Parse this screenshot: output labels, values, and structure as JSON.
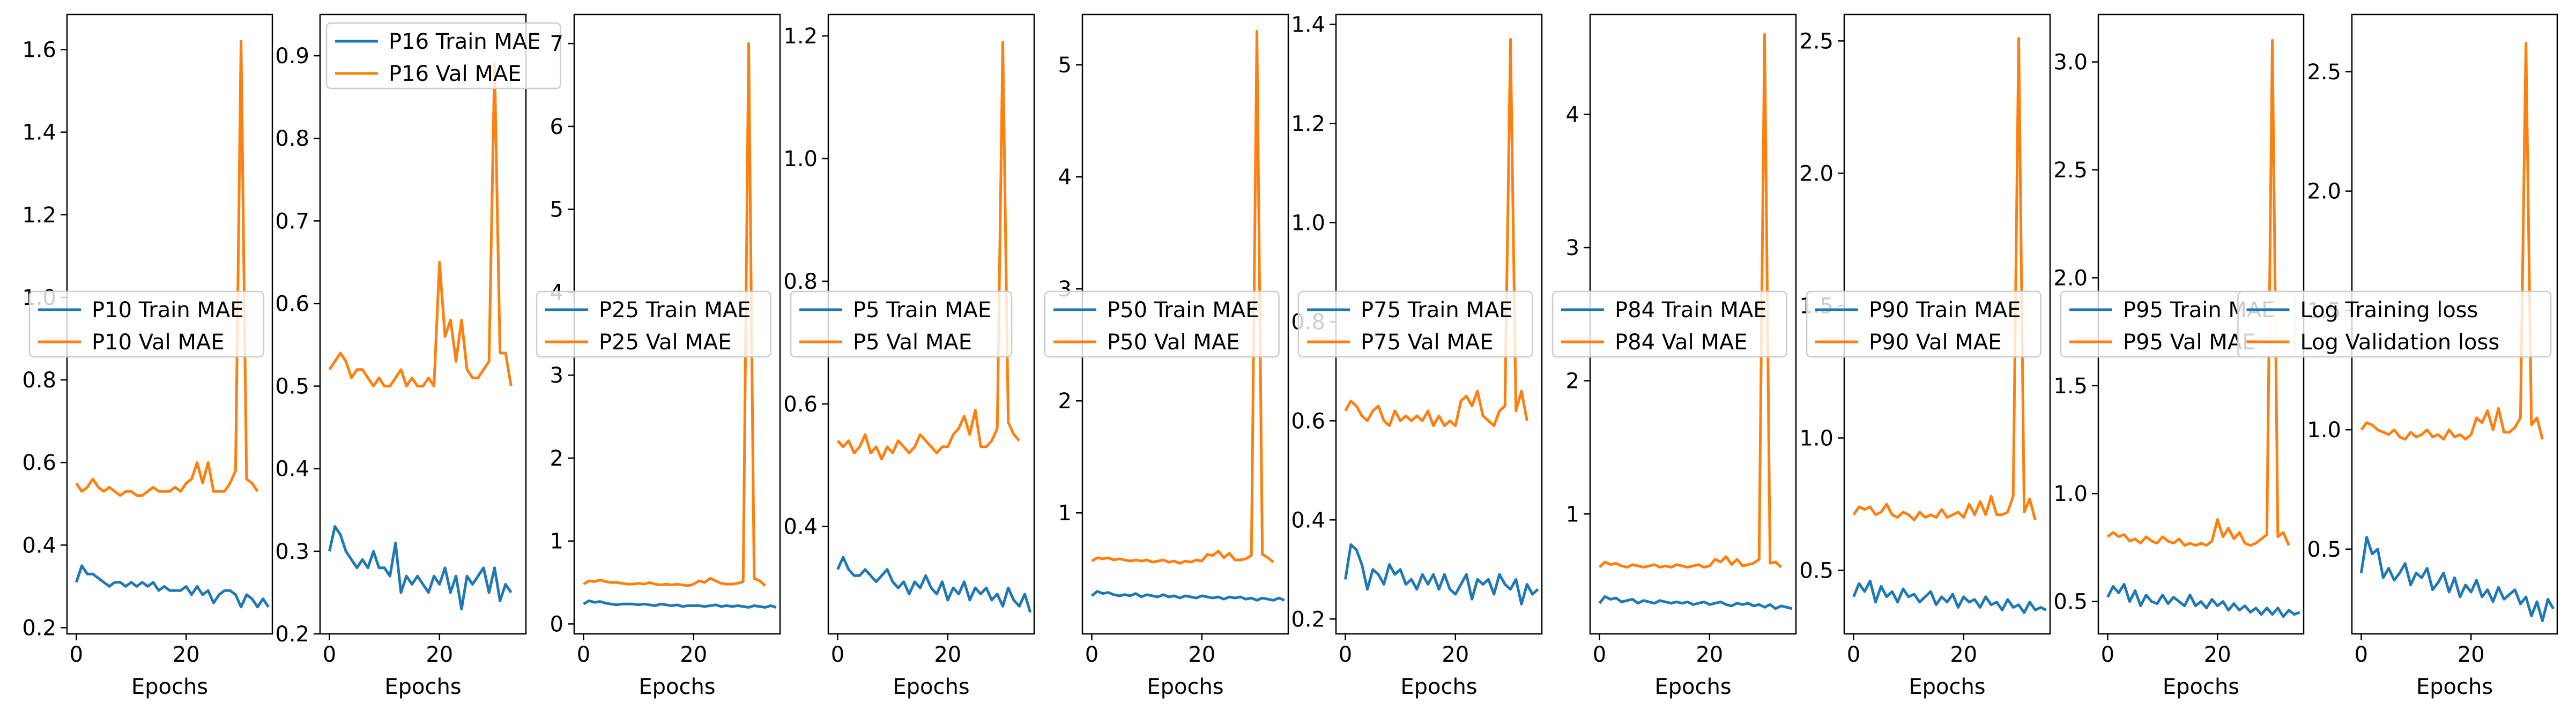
{
  "colors": {
    "train": "#1f77b4",
    "val": "#ff7f0e",
    "axes": "#000000",
    "legend_border": "#cccccc"
  },
  "chart_data": [
    {
      "type": "line",
      "xlabel": "Epochs",
      "xlim": [
        -1.7,
        35.7
      ],
      "xticks": [
        0,
        20
      ],
      "ylim": [
        0.185,
        1.685
      ],
      "yticks": [
        0.2,
        0.4,
        0.6,
        0.8,
        1.0,
        1.2,
        1.4,
        1.6
      ],
      "ytick_labels": [
        "0.2",
        "0.4",
        "0.6",
        "0.8",
        "1.0",
        "1.2",
        "1.4",
        "1.6"
      ],
      "legend": "center-left",
      "series": [
        {
          "name": "P10 Train MAE",
          "values": [
            0.31,
            0.35,
            0.33,
            0.33,
            0.32,
            0.31,
            0.3,
            0.31,
            0.31,
            0.3,
            0.31,
            0.3,
            0.31,
            0.3,
            0.31,
            0.29,
            0.3,
            0.29,
            0.29,
            0.29,
            0.3,
            0.28,
            0.3,
            0.28,
            0.29,
            0.26,
            0.28,
            0.29,
            0.29,
            0.28,
            0.25,
            0.28,
            0.27,
            0.25,
            0.27,
            0.25
          ]
        },
        {
          "name": "P10 Val MAE",
          "values": [
            0.55,
            0.53,
            0.54,
            0.56,
            0.54,
            0.53,
            0.54,
            0.53,
            0.52,
            0.53,
            0.53,
            0.52,
            0.52,
            0.53,
            0.54,
            0.53,
            0.53,
            0.53,
            0.54,
            0.53,
            0.55,
            0.56,
            0.6,
            0.55,
            0.6,
            0.53,
            0.53,
            0.53,
            0.55,
            0.58,
            1.62,
            0.56,
            0.55,
            0.53
          ]
        }
      ]
    },
    {
      "type": "line",
      "xlabel": "Epochs",
      "xlim": [
        -1.7,
        35.7
      ],
      "xticks": [
        0,
        20
      ],
      "ylim": [
        0.2,
        0.95
      ],
      "yticks": [
        0.2,
        0.3,
        0.4,
        0.5,
        0.6,
        0.7,
        0.8,
        0.9
      ],
      "ytick_labels": [
        "0.2",
        "0.3",
        "0.4",
        "0.5",
        "0.6",
        "0.7",
        "0.8",
        "0.9"
      ],
      "legend": "upper-left",
      "series": [
        {
          "name": "P16 Train MAE",
          "values": [
            0.3,
            0.33,
            0.32,
            0.3,
            0.29,
            0.28,
            0.29,
            0.28,
            0.3,
            0.28,
            0.28,
            0.27,
            0.31,
            0.25,
            0.27,
            0.26,
            0.27,
            0.26,
            0.25,
            0.27,
            0.26,
            0.28,
            0.25,
            0.27,
            0.23,
            0.27,
            0.26,
            0.27,
            0.28,
            0.25,
            0.28,
            0.24,
            0.26,
            0.25
          ]
        },
        {
          "name": "P16 Val MAE",
          "values": [
            0.52,
            0.53,
            0.54,
            0.53,
            0.51,
            0.52,
            0.52,
            0.51,
            0.5,
            0.51,
            0.5,
            0.5,
            0.51,
            0.52,
            0.5,
            0.51,
            0.5,
            0.5,
            0.51,
            0.5,
            0.65,
            0.56,
            0.58,
            0.53,
            0.58,
            0.52,
            0.51,
            0.51,
            0.52,
            0.53,
            0.89,
            0.54,
            0.54,
            0.5
          ]
        }
      ]
    },
    {
      "type": "line",
      "xlabel": "Epochs",
      "xlim": [
        -1.7,
        35.7
      ],
      "xticks": [
        0,
        20
      ],
      "ylim": [
        -0.12,
        7.35
      ],
      "yticks": [
        0,
        1,
        2,
        3,
        4,
        5,
        6,
        7
      ],
      "ytick_labels": [
        "0",
        "1",
        "2",
        "3",
        "4",
        "5",
        "6",
        "7"
      ],
      "legend": "center-left",
      "series": [
        {
          "name": "P25 Train MAE",
          "values": [
            0.24,
            0.28,
            0.26,
            0.27,
            0.25,
            0.24,
            0.23,
            0.24,
            0.24,
            0.24,
            0.23,
            0.24,
            0.23,
            0.22,
            0.24,
            0.23,
            0.22,
            0.23,
            0.21,
            0.22,
            0.22,
            0.22,
            0.21,
            0.22,
            0.23,
            0.21,
            0.22,
            0.21,
            0.22,
            0.21,
            0.2,
            0.22,
            0.21,
            0.2,
            0.22,
            0.2
          ]
        },
        {
          "name": "P25 Val MAE",
          "values": [
            0.48,
            0.52,
            0.51,
            0.53,
            0.51,
            0.5,
            0.5,
            0.49,
            0.48,
            0.48,
            0.49,
            0.48,
            0.5,
            0.48,
            0.47,
            0.48,
            0.47,
            0.48,
            0.47,
            0.46,
            0.48,
            0.52,
            0.5,
            0.55,
            0.52,
            0.49,
            0.48,
            0.48,
            0.49,
            0.51,
            7.0,
            0.55,
            0.52,
            0.46
          ]
        }
      ]
    },
    {
      "type": "line",
      "xlabel": "Epochs",
      "xlim": [
        -1.7,
        35.7
      ],
      "xticks": [
        0,
        20
      ],
      "ylim": [
        0.225,
        1.235
      ],
      "yticks": [
        0.4,
        0.6,
        0.8,
        1.0,
        1.2
      ],
      "ytick_labels": [
        "0.4",
        "0.6",
        "0.8",
        "1.0",
        "1.2"
      ],
      "legend": "center-left",
      "series": [
        {
          "name": "P5 Train MAE",
          "values": [
            0.33,
            0.35,
            0.33,
            0.32,
            0.32,
            0.33,
            0.32,
            0.31,
            0.32,
            0.33,
            0.31,
            0.3,
            0.31,
            0.29,
            0.31,
            0.3,
            0.32,
            0.3,
            0.29,
            0.31,
            0.28,
            0.3,
            0.29,
            0.31,
            0.28,
            0.3,
            0.29,
            0.3,
            0.28,
            0.29,
            0.27,
            0.3,
            0.28,
            0.27,
            0.29,
            0.26
          ]
        },
        {
          "name": "P5 Val MAE",
          "values": [
            0.54,
            0.53,
            0.54,
            0.52,
            0.53,
            0.55,
            0.52,
            0.53,
            0.51,
            0.53,
            0.52,
            0.54,
            0.53,
            0.52,
            0.53,
            0.55,
            0.54,
            0.53,
            0.52,
            0.53,
            0.53,
            0.55,
            0.56,
            0.58,
            0.55,
            0.59,
            0.53,
            0.53,
            0.54,
            0.56,
            1.19,
            0.57,
            0.55,
            0.54
          ]
        }
      ]
    },
    {
      "type": "line",
      "xlabel": "Epochs",
      "xlim": [
        -1.7,
        35.7
      ],
      "xticks": [
        0,
        20
      ],
      "ylim": [
        -0.08,
        5.45
      ],
      "yticks": [
        1,
        2,
        3,
        4,
        5
      ],
      "ytick_labels": [
        "1",
        "2",
        "3",
        "4",
        "5"
      ],
      "legend": "center-left",
      "series": [
        {
          "name": "P50 Train MAE",
          "values": [
            0.26,
            0.3,
            0.28,
            0.29,
            0.27,
            0.26,
            0.27,
            0.26,
            0.28,
            0.25,
            0.27,
            0.26,
            0.25,
            0.27,
            0.25,
            0.26,
            0.24,
            0.26,
            0.25,
            0.24,
            0.26,
            0.25,
            0.24,
            0.25,
            0.23,
            0.25,
            0.24,
            0.25,
            0.23,
            0.24,
            0.22,
            0.24,
            0.23,
            0.22,
            0.24,
            0.22
          ]
        },
        {
          "name": "P50 Val MAE",
          "values": [
            0.57,
            0.6,
            0.59,
            0.6,
            0.58,
            0.59,
            0.58,
            0.57,
            0.58,
            0.57,
            0.58,
            0.56,
            0.57,
            0.58,
            0.56,
            0.57,
            0.55,
            0.57,
            0.56,
            0.58,
            0.57,
            0.63,
            0.62,
            0.66,
            0.6,
            0.64,
            0.58,
            0.58,
            0.59,
            0.62,
            5.3,
            0.63,
            0.6,
            0.56
          ]
        }
      ]
    },
    {
      "type": "line",
      "xlabel": "Epochs",
      "xlim": [
        -1.7,
        35.7
      ],
      "xticks": [
        0,
        20
      ],
      "ylim": [
        0.17,
        1.42
      ],
      "yticks": [
        0.2,
        0.4,
        0.6,
        0.8,
        1.0,
        1.2,
        1.4
      ],
      "ytick_labels": [
        "0.2",
        "0.4",
        "0.6",
        "0.8",
        "1.0",
        "1.2",
        "1.4"
      ],
      "legend": "center-left",
      "series": [
        {
          "name": "P75 Train MAE",
          "values": [
            0.28,
            0.35,
            0.34,
            0.31,
            0.26,
            0.3,
            0.29,
            0.27,
            0.31,
            0.29,
            0.3,
            0.27,
            0.28,
            0.26,
            0.29,
            0.27,
            0.29,
            0.26,
            0.29,
            0.26,
            0.25,
            0.27,
            0.29,
            0.24,
            0.28,
            0.27,
            0.28,
            0.25,
            0.29,
            0.27,
            0.26,
            0.28,
            0.23,
            0.27,
            0.25,
            0.26
          ]
        },
        {
          "name": "P75 Val MAE",
          "values": [
            0.62,
            0.64,
            0.63,
            0.61,
            0.6,
            0.62,
            0.63,
            0.6,
            0.59,
            0.62,
            0.6,
            0.61,
            0.6,
            0.61,
            0.6,
            0.62,
            0.59,
            0.61,
            0.59,
            0.6,
            0.59,
            0.64,
            0.65,
            0.63,
            0.66,
            0.61,
            0.6,
            0.59,
            0.62,
            0.63,
            1.37,
            0.62,
            0.66,
            0.6
          ]
        }
      ]
    },
    {
      "type": "line",
      "xlabel": "Epochs",
      "xlim": [
        -1.7,
        35.7
      ],
      "xticks": [
        0,
        20
      ],
      "ylim": [
        0.1,
        4.75
      ],
      "yticks": [
        1,
        2,
        3,
        4
      ],
      "ytick_labels": [
        "1",
        "2",
        "3",
        "4"
      ],
      "legend": "center-left",
      "series": [
        {
          "name": "P84 Train MAE",
          "values": [
            0.33,
            0.38,
            0.36,
            0.37,
            0.34,
            0.35,
            0.36,
            0.33,
            0.35,
            0.34,
            0.33,
            0.35,
            0.34,
            0.33,
            0.34,
            0.33,
            0.34,
            0.32,
            0.33,
            0.34,
            0.32,
            0.33,
            0.34,
            0.32,
            0.31,
            0.33,
            0.32,
            0.33,
            0.31,
            0.32,
            0.3,
            0.32,
            0.29,
            0.31,
            0.3,
            0.29
          ]
        },
        {
          "name": "P84 Val MAE",
          "values": [
            0.6,
            0.64,
            0.62,
            0.63,
            0.61,
            0.6,
            0.62,
            0.61,
            0.6,
            0.61,
            0.62,
            0.6,
            0.61,
            0.6,
            0.62,
            0.61,
            0.6,
            0.61,
            0.62,
            0.6,
            0.61,
            0.66,
            0.64,
            0.68,
            0.62,
            0.66,
            0.61,
            0.62,
            0.63,
            0.66,
            4.6,
            0.63,
            0.64,
            0.6
          ]
        }
      ]
    },
    {
      "type": "line",
      "xlabel": "Epochs",
      "xlim": [
        -1.7,
        35.7
      ],
      "xticks": [
        0,
        20
      ],
      "ylim": [
        0.26,
        2.6
      ],
      "yticks": [
        0.5,
        1.0,
        1.5,
        2.0,
        2.5
      ],
      "ytick_labels": [
        "0.5",
        "1.0",
        "1.5",
        "2.0",
        "2.5"
      ],
      "legend": "center-left",
      "series": [
        {
          "name": "P90 Train MAE",
          "values": [
            0.4,
            0.45,
            0.42,
            0.46,
            0.38,
            0.44,
            0.4,
            0.42,
            0.38,
            0.43,
            0.4,
            0.41,
            0.38,
            0.4,
            0.42,
            0.37,
            0.4,
            0.38,
            0.41,
            0.36,
            0.4,
            0.38,
            0.39,
            0.36,
            0.4,
            0.37,
            0.38,
            0.35,
            0.39,
            0.36,
            0.37,
            0.34,
            0.38,
            0.35,
            0.36,
            0.35
          ]
        },
        {
          "name": "P90 Val MAE",
          "values": [
            0.71,
            0.74,
            0.73,
            0.74,
            0.71,
            0.72,
            0.75,
            0.71,
            0.7,
            0.72,
            0.71,
            0.69,
            0.72,
            0.7,
            0.71,
            0.7,
            0.73,
            0.7,
            0.71,
            0.72,
            0.7,
            0.75,
            0.71,
            0.76,
            0.71,
            0.78,
            0.71,
            0.71,
            0.72,
            0.78,
            2.51,
            0.72,
            0.77,
            0.69
          ]
        }
      ]
    },
    {
      "type": "line",
      "xlabel": "Epochs",
      "xlim": [
        -1.7,
        35.7
      ],
      "xticks": [
        0,
        20
      ],
      "ylim": [
        0.35,
        3.22
      ],
      "yticks": [
        0.5,
        1.0,
        1.5,
        2.0,
        2.5,
        3.0
      ],
      "ytick_labels": [
        "0.5",
        "1.0",
        "1.5",
        "2.0",
        "2.5",
        "3.0"
      ],
      "legend": "center-left",
      "series": [
        {
          "name": "P95 Train MAE",
          "values": [
            0.52,
            0.57,
            0.54,
            0.58,
            0.5,
            0.55,
            0.48,
            0.53,
            0.5,
            0.49,
            0.53,
            0.49,
            0.52,
            0.5,
            0.48,
            0.53,
            0.48,
            0.5,
            0.47,
            0.51,
            0.48,
            0.5,
            0.46,
            0.49,
            0.46,
            0.48,
            0.45,
            0.47,
            0.44,
            0.47,
            0.44,
            0.47,
            0.43,
            0.46,
            0.44,
            0.45
          ]
        },
        {
          "name": "P95 Val MAE",
          "values": [
            0.8,
            0.82,
            0.8,
            0.81,
            0.78,
            0.79,
            0.77,
            0.8,
            0.78,
            0.77,
            0.8,
            0.78,
            0.77,
            0.79,
            0.76,
            0.77,
            0.76,
            0.77,
            0.76,
            0.78,
            0.88,
            0.8,
            0.84,
            0.79,
            0.82,
            0.77,
            0.76,
            0.77,
            0.79,
            0.81,
            3.1,
            0.8,
            0.82,
            0.76
          ]
        }
      ]
    },
    {
      "type": "line",
      "xlabel": "Epochs",
      "xlim": [
        -1.7,
        35.7
      ],
      "xticks": [
        0,
        20
      ],
      "ylim": [
        0.145,
        2.74
      ],
      "yticks": [
        0.5,
        1.0,
        1.5,
        2.0,
        2.5
      ],
      "ytick_labels": [
        "0.5",
        "1.0",
        "1.5",
        "2.0",
        "2.5"
      ],
      "legend": "center-right",
      "series": [
        {
          "name": "Log Training loss",
          "values": [
            0.4,
            0.55,
            0.48,
            0.5,
            0.38,
            0.42,
            0.37,
            0.4,
            0.44,
            0.35,
            0.4,
            0.38,
            0.42,
            0.33,
            0.36,
            0.4,
            0.32,
            0.38,
            0.3,
            0.35,
            0.32,
            0.37,
            0.3,
            0.33,
            0.28,
            0.34,
            0.29,
            0.31,
            0.33,
            0.27,
            0.3,
            0.22,
            0.28,
            0.2,
            0.29,
            0.25
          ]
        },
        {
          "name": "Log Validation loss",
          "values": [
            1.0,
            1.03,
            1.02,
            1.0,
            0.99,
            0.98,
            1.0,
            0.97,
            0.96,
            0.99,
            0.97,
            0.98,
            1.0,
            0.97,
            0.98,
            0.96,
            1.0,
            0.97,
            0.98,
            0.96,
            0.98,
            1.05,
            1.03,
            1.08,
            1.0,
            1.09,
            0.99,
            0.99,
            1.01,
            1.05,
            2.62,
            1.02,
            1.05,
            0.96
          ]
        }
      ]
    }
  ]
}
